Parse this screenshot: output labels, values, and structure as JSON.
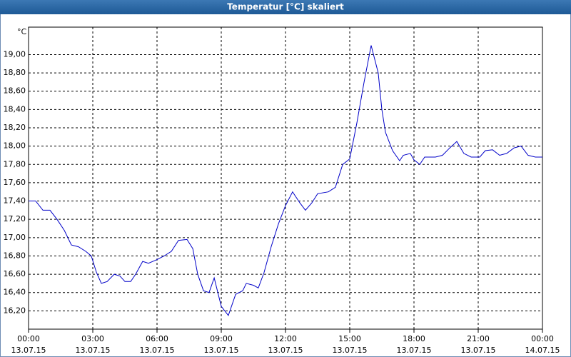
{
  "chart_data": {
    "type": "line",
    "title": "Temperatur [°C] skaliert",
    "y_unit": "°C",
    "x": [
      0,
      0.33,
      0.67,
      1,
      1.33,
      1.67,
      2,
      2.33,
      2.67,
      2.93,
      3.17,
      3.4,
      3.67,
      4,
      4.27,
      4.5,
      4.77,
      5,
      5.33,
      5.6,
      6,
      6.33,
      6.67,
      7,
      7.4,
      7.67,
      7.9,
      8.17,
      8.43,
      8.67,
      9,
      9.33,
      9.67,
      10,
      10.17,
      10.5,
      10.73,
      11,
      11.33,
      11.67,
      12,
      12.33,
      12.67,
      12.93,
      13.23,
      13.5,
      14,
      14.33,
      14.67,
      15,
      15.33,
      15.67,
      16,
      16.33,
      16.5,
      16.67,
      17,
      17.33,
      17.5,
      17.83,
      18,
      18.27,
      18.5,
      19,
      19.33,
      19.67,
      20,
      20.33,
      20.67,
      21.07,
      21.33,
      21.67,
      22,
      22.33,
      22.67,
      23,
      23.33,
      23.67,
      24
    ],
    "series": [
      {
        "name": "Temperatur",
        "color": "#0000c8",
        "values": [
          17.4,
          17.4,
          17.3,
          17.3,
          17.2,
          17.08,
          16.92,
          16.9,
          16.85,
          16.8,
          16.62,
          16.5,
          16.52,
          16.6,
          16.58,
          16.52,
          16.52,
          16.6,
          16.74,
          16.72,
          16.76,
          16.8,
          16.85,
          16.97,
          16.98,
          16.88,
          16.6,
          16.42,
          16.4,
          16.56,
          16.25,
          16.15,
          16.38,
          16.42,
          16.5,
          16.48,
          16.45,
          16.62,
          16.9,
          17.15,
          17.35,
          17.5,
          17.38,
          17.3,
          17.38,
          17.48,
          17.5,
          17.55,
          17.8,
          17.86,
          18.25,
          18.7,
          19.1,
          18.8,
          18.4,
          18.15,
          17.95,
          17.84,
          17.9,
          17.92,
          17.85,
          17.8,
          17.88,
          17.88,
          17.9,
          17.98,
          18.05,
          17.92,
          17.88,
          17.88,
          17.95,
          17.96,
          17.9,
          17.92,
          17.98,
          18.0,
          17.9,
          17.88,
          17.88
        ]
      }
    ],
    "xlim": [
      0,
      24
    ],
    "xticks": [
      {
        "value": 0,
        "label": "00:00",
        "date": "13.07.15"
      },
      {
        "value": 3,
        "label": "03:00",
        "date": "13.07.15"
      },
      {
        "value": 6,
        "label": "06:00",
        "date": "13.07.15"
      },
      {
        "value": 9,
        "label": "09:00",
        "date": "13.07.15"
      },
      {
        "value": 12,
        "label": "12:00",
        "date": "13.07.15"
      },
      {
        "value": 15,
        "label": "15:00",
        "date": "13.07.15"
      },
      {
        "value": 18,
        "label": "18:00",
        "date": "13.07.15"
      },
      {
        "value": 21,
        "label": "21:00",
        "date": "13.07.15"
      },
      {
        "value": 24,
        "label": "00:00",
        "date": "14.07.15"
      }
    ],
    "ylim": [
      16.0,
      19.3
    ],
    "yticks": [
      {
        "value": 16.2,
        "label": "16,20"
      },
      {
        "value": 16.4,
        "label": "16,40"
      },
      {
        "value": 16.6,
        "label": "16,60"
      },
      {
        "value": 16.8,
        "label": "16,80"
      },
      {
        "value": 17.0,
        "label": "17,00"
      },
      {
        "value": 17.2,
        "label": "17,20"
      },
      {
        "value": 17.4,
        "label": "17,40"
      },
      {
        "value": 17.6,
        "label": "17,60"
      },
      {
        "value": 17.8,
        "label": "17,80"
      },
      {
        "value": 18.0,
        "label": "18,00"
      },
      {
        "value": 18.2,
        "label": "18,20"
      },
      {
        "value": 18.4,
        "label": "18,40"
      },
      {
        "value": 18.6,
        "label": "18,60"
      },
      {
        "value": 18.8,
        "label": "18,80"
      },
      {
        "value": 19.0,
        "label": "19,00"
      }
    ],
    "grid": true
  }
}
